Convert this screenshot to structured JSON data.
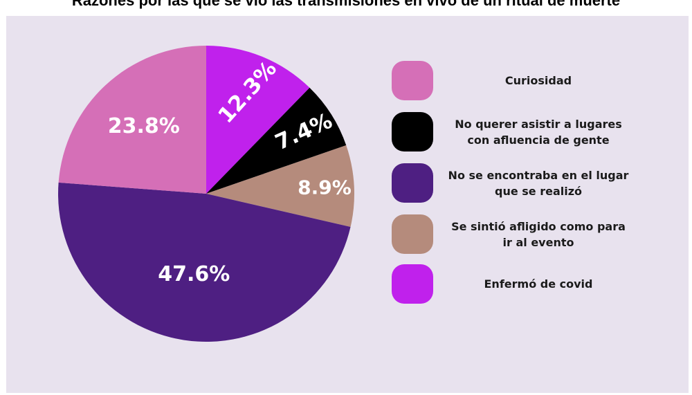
{
  "title": "Razones por las que se vio las transmisiones en vivo de un ritual de muerte",
  "chart_data": {
    "type": "pie",
    "unit": "%",
    "slices": [
      {
        "label": "Curiosidad",
        "value": 23.8,
        "display": "23.8%",
        "color": "#d56fb7"
      },
      {
        "label": "No querer asistir a lugares con afluencia de gente",
        "value": 7.4,
        "display": "7.4%",
        "color": "#000000"
      },
      {
        "label": "No se encontraba en el lugar que se realizó",
        "value": 47.6,
        "display": "47.6%",
        "color": "#4e1f82"
      },
      {
        "label": "Se sintió afligido como para ir al evento",
        "value": 8.9,
        "display": "8.9%",
        "color": "#b58b7c"
      },
      {
        "label": "Enfermó de covid",
        "value": 12.3,
        "display": "12.3%",
        "color": "#c021ec"
      }
    ],
    "draw_order": [
      4,
      1,
      3,
      2,
      0
    ],
    "legend": {
      "placement": "right",
      "entries": [
        {
          "line1": "Curiosidad",
          "line2": "",
          "color": "#d56fb7"
        },
        {
          "line1": "No querer asistir a lugares",
          "line2": "con afluencia de gente",
          "color": "#000000"
        },
        {
          "line1": "No se encontraba en el lugar",
          "line2": "que se realizó",
          "color": "#4e1f82"
        },
        {
          "line1": "Se sintió afligido como para",
          "line2": "ir al evento",
          "color": "#b58b7c"
        },
        {
          "line1": "Enfermó de covid",
          "line2": "",
          "color": "#c021ec"
        }
      ]
    }
  }
}
